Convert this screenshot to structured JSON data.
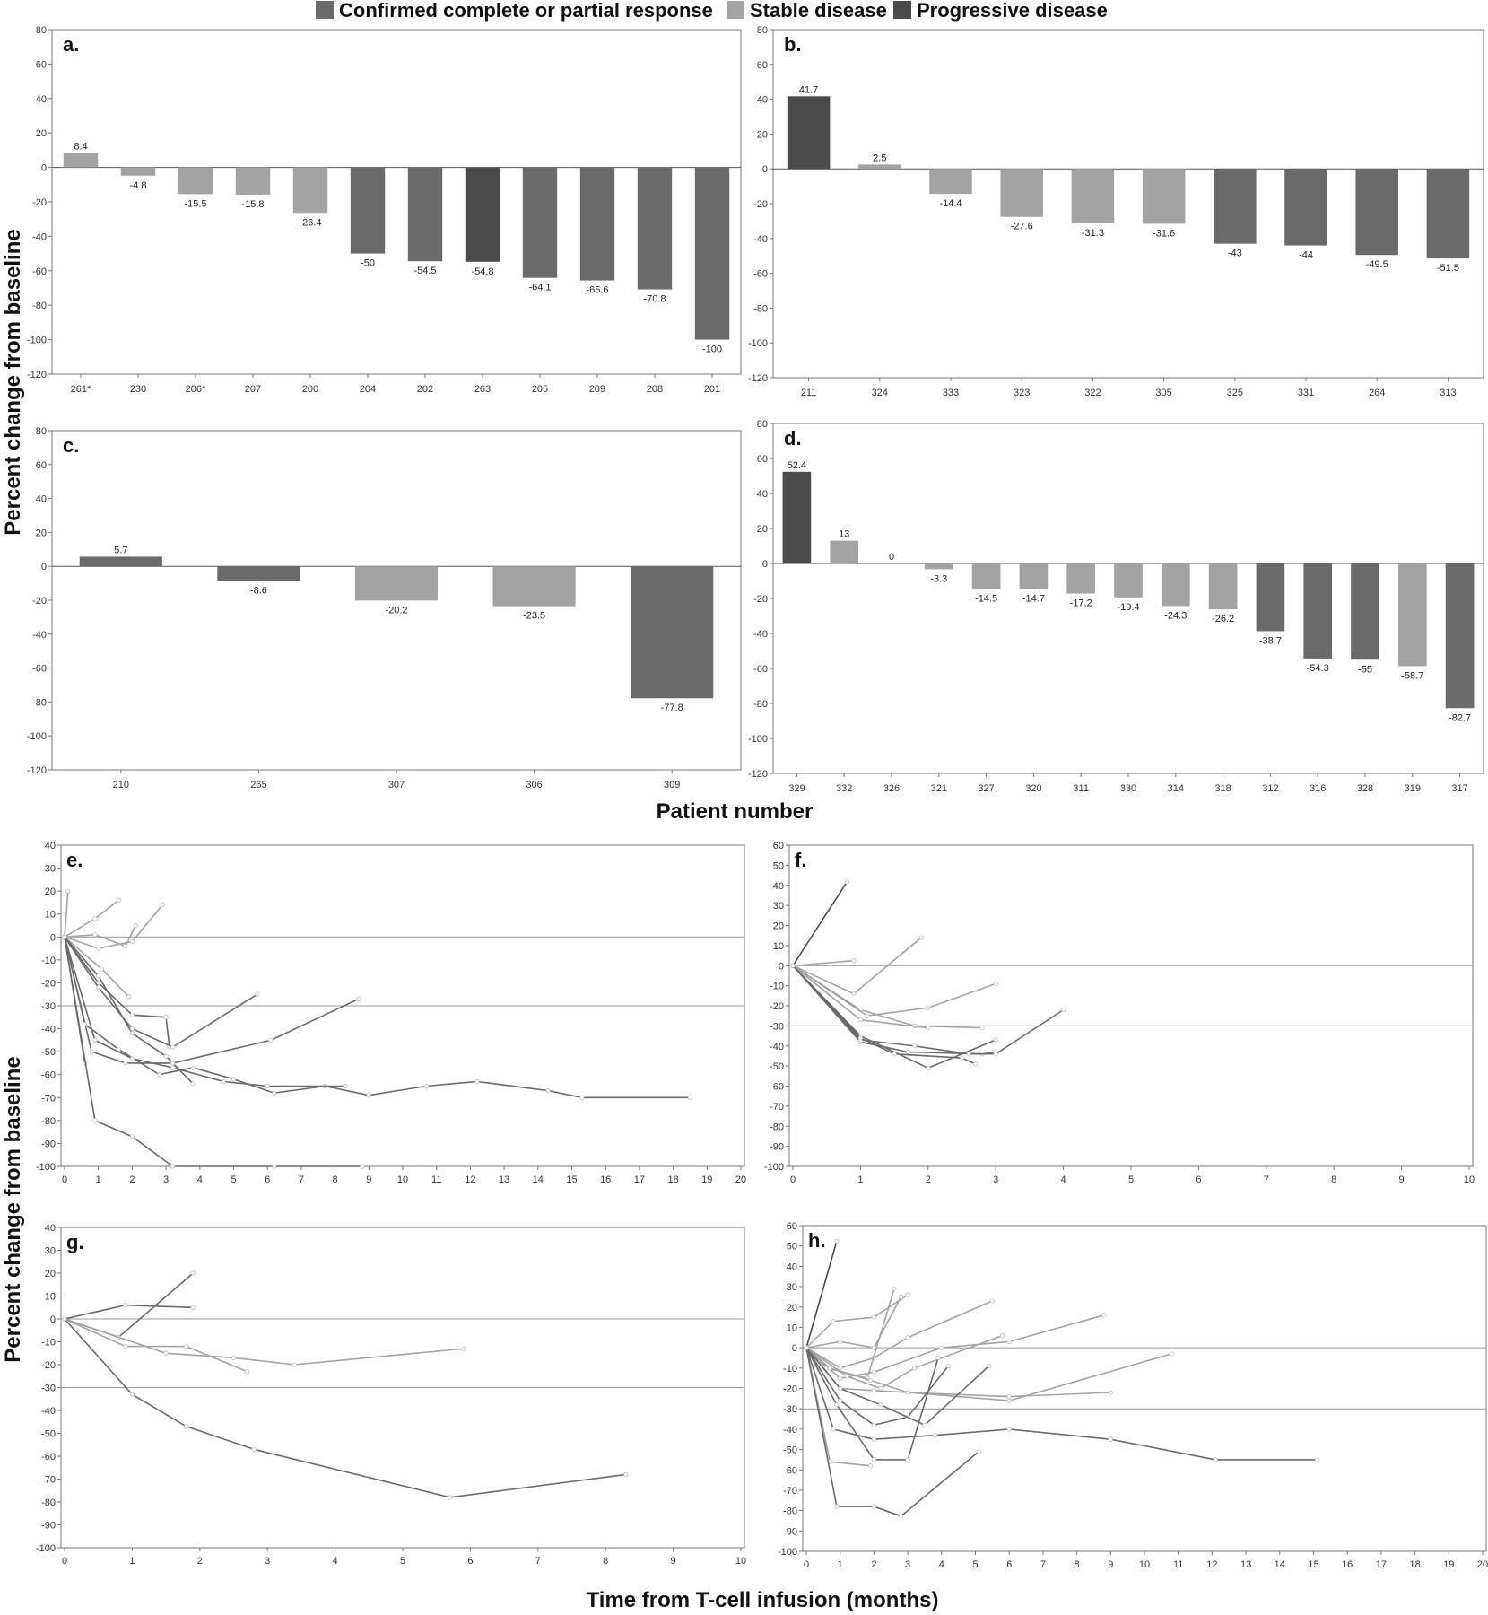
{
  "legend": [
    {
      "label": "Confirmed complete or partial response",
      "color": "#6a6a6a"
    },
    {
      "label": "Stable disease",
      "color": "#a3a3a3"
    },
    {
      "label": "Progressive disease",
      "color": "#4b4b4b"
    }
  ],
  "labels": {
    "ylabel_top": "Percent change from baseline",
    "xlabel_top": "Patient number",
    "ylabel_bottom": "Percent change from baseline",
    "xlabel_bottom": "Time from T-cell infusion (months)"
  },
  "colors": {
    "response": "#6a6a6a",
    "stable": "#a3a3a3",
    "progressive": "#4b4b4b"
  },
  "chart_data": [
    {
      "panel": "a.",
      "type": "bar",
      "ylim": [
        -120,
        80
      ],
      "ytick_step": 20,
      "categories": [
        "261*",
        "230",
        "206*",
        "207",
        "200",
        "204",
        "202",
        "263",
        "205",
        "209",
        "208",
        "201"
      ],
      "values": [
        8.4,
        -4.8,
        -15.5,
        -15.8,
        -26.4,
        -50,
        -54.5,
        -54.8,
        -64.1,
        -65.6,
        -70.8,
        -100
      ],
      "labels": [
        "8.4",
        "-4.8",
        "-15.5",
        "-15.8",
        "-26.4",
        "-50",
        "-54.5",
        "-54.8",
        "-64.1",
        "-65.6",
        "-70.8",
        "-100"
      ],
      "response": [
        "stable",
        "stable",
        "stable",
        "stable",
        "stable",
        "response",
        "response",
        "progressive",
        "response",
        "response",
        "response",
        "response"
      ]
    },
    {
      "panel": "b.",
      "type": "bar",
      "ylim": [
        -120,
        80
      ],
      "ytick_step": 20,
      "categories": [
        "211",
        "324",
        "333",
        "323",
        "322",
        "305",
        "325",
        "331",
        "264",
        "313"
      ],
      "values": [
        41.7,
        2.5,
        -14.4,
        -27.6,
        -31.3,
        -31.6,
        -43,
        -44,
        -49.5,
        -51.5
      ],
      "labels": [
        "41.7",
        "2.5",
        "-14.4",
        "-27.6",
        "-31.3",
        "-31.6",
        "-43",
        "-44",
        "-49.5",
        "-51.5"
      ],
      "response": [
        "progressive",
        "stable",
        "stable",
        "stable",
        "stable",
        "stable",
        "response",
        "response",
        "response",
        "response"
      ]
    },
    {
      "panel": "c.",
      "type": "bar",
      "ylim": [
        -120,
        80
      ],
      "ytick_step": 20,
      "categories": [
        "210",
        "265",
        "307",
        "306",
        "309"
      ],
      "values": [
        5.7,
        -8.6,
        -20.2,
        -23.5,
        -77.8
      ],
      "labels": [
        "5.7",
        "-8.6",
        "-20.2",
        "-23.5",
        "-77.8"
      ],
      "response": [
        "response",
        "response",
        "stable",
        "stable",
        "response"
      ]
    },
    {
      "panel": "d.",
      "type": "bar",
      "ylim": [
        -120,
        80
      ],
      "ytick_step": 20,
      "categories": [
        "329",
        "332",
        "326",
        "321",
        "327",
        "320",
        "311",
        "330",
        "314",
        "318",
        "312",
        "316",
        "328",
        "319",
        "317"
      ],
      "values": [
        52.4,
        13,
        0,
        -3.3,
        -14.5,
        -14.7,
        -17.2,
        -19.4,
        -24.3,
        -26.2,
        -38.7,
        -54.3,
        -55,
        -58.7,
        -82.7
      ],
      "labels": [
        "52.4",
        "13",
        "0",
        "-3.3",
        "-14.5",
        "-14.7",
        "-17.2",
        "-19.4",
        "-24.3",
        "-26.2",
        "-38.7",
        "-54.3",
        "-55",
        "-58.7",
        "-82.7"
      ],
      "response": [
        "progressive",
        "stable",
        "stable",
        "stable",
        "stable",
        "stable",
        "stable",
        "stable",
        "stable",
        "stable",
        "response",
        "response",
        "response",
        "stable",
        "response"
      ]
    },
    {
      "panel": "e.",
      "type": "line",
      "xlim": [
        0,
        20
      ],
      "ylim": [
        -100,
        40
      ],
      "ytick_step": 10,
      "ref_lines": [
        0,
        -30
      ],
      "series": [
        {
          "response": "stable",
          "x": [
            0,
            0.1
          ],
          "y": [
            0,
            20
          ]
        },
        {
          "response": "stable",
          "x": [
            0,
            0.9,
            1.6
          ],
          "y": [
            0,
            8,
            16
          ]
        },
        {
          "response": "stable",
          "x": [
            0,
            0.9,
            1.8,
            2.1
          ],
          "y": [
            0,
            1,
            -4,
            5
          ]
        },
        {
          "response": "stable",
          "x": [
            0,
            1.0,
            2.0,
            2.9
          ],
          "y": [
            0,
            -5,
            -2,
            14
          ]
        },
        {
          "response": "stable",
          "x": [
            0,
            1.1,
            1.9
          ],
          "y": [
            0,
            -14,
            -26
          ]
        },
        {
          "response": "response",
          "x": [
            0,
            1.0,
            2.0,
            3.0,
            3.8
          ],
          "y": [
            0,
            -17,
            -42,
            -52,
            -64
          ]
        },
        {
          "response": "response",
          "x": [
            0,
            1.0,
            2.0,
            3.0,
            3.1
          ],
          "y": [
            0,
            -20,
            -34,
            -35,
            -48
          ]
        },
        {
          "response": "response",
          "x": [
            0,
            1.0,
            2.0,
            3.2,
            5.7
          ],
          "y": [
            0,
            -22,
            -40,
            -48,
            -25
          ]
        },
        {
          "response": "response",
          "x": [
            0,
            0.8,
            1.8,
            3.2,
            6.1,
            8.7
          ],
          "y": [
            0,
            -50,
            -55,
            -55,
            -45,
            -27
          ]
        },
        {
          "response": "response",
          "x": [
            0,
            0.6,
            1.6,
            2.8,
            3.8,
            5.0,
            6.2,
            7.7,
            9.0,
            10.7,
            12.2,
            14.3,
            15.3,
            18.5
          ],
          "y": [
            0,
            -38,
            -49,
            -60,
            -57,
            -62,
            -68,
            -65,
            -69,
            -65,
            -63,
            -67,
            -70,
            -70
          ]
        },
        {
          "response": "response",
          "x": [
            0,
            0.9,
            2.0,
            3.2,
            4.7,
            6.0,
            8.3
          ],
          "y": [
            0,
            -45,
            -53,
            -57,
            -63,
            -65,
            -65
          ]
        },
        {
          "response": "response",
          "x": [
            0,
            0.6
          ],
          "y": [
            0,
            -55
          ]
        },
        {
          "response": "response",
          "x": [
            0,
            0.9,
            2.0,
            3.2,
            6.2,
            8.8
          ],
          "y": [
            0,
            -80,
            -87,
            -100,
            -100,
            -100
          ]
        }
      ]
    },
    {
      "panel": "f.",
      "type": "line",
      "xlim": [
        0,
        10
      ],
      "ylim": [
        -100,
        60
      ],
      "ytick_step": 10,
      "ref_lines": [
        0,
        -30
      ],
      "series": [
        {
          "response": "progressive",
          "x": [
            0,
            0.8
          ],
          "y": [
            0,
            41.7
          ]
        },
        {
          "response": "stable",
          "x": [
            0,
            0.9
          ],
          "y": [
            0,
            2.5
          ]
        },
        {
          "response": "stable",
          "x": [
            0,
            0.9,
            1.9
          ],
          "y": [
            0,
            -14,
            14
          ]
        },
        {
          "response": "stable",
          "x": [
            0,
            1.0,
            1.8,
            2.8
          ],
          "y": [
            0,
            -22,
            -30,
            -31
          ]
        },
        {
          "response": "stable",
          "x": [
            0,
            1.0,
            2.0
          ],
          "y": [
            0,
            -27,
            -31
          ]
        },
        {
          "response": "stable",
          "x": [
            0,
            1.1,
            2.0,
            3.0
          ],
          "y": [
            0,
            -25,
            -21,
            -9
          ]
        },
        {
          "response": "response",
          "x": [
            0,
            1.0,
            1.7,
            2.8,
            3.0
          ],
          "y": [
            0,
            -38,
            -43,
            -44,
            -43
          ]
        },
        {
          "response": "response",
          "x": [
            0,
            1.0,
            1.8,
            2.6,
            3.0,
            4.0
          ],
          "y": [
            0,
            -37,
            -40,
            -44,
            -44,
            -22
          ]
        },
        {
          "response": "response",
          "x": [
            0,
            1.0,
            2.0,
            3.0
          ],
          "y": [
            0,
            -35,
            -51,
            -37
          ]
        },
        {
          "response": "response",
          "x": [
            0,
            1.0,
            1.5,
            2.5,
            2.7
          ],
          "y": [
            0,
            -36,
            -44,
            -46,
            -49
          ]
        }
      ]
    },
    {
      "panel": "g.",
      "type": "line",
      "xlim": [
        0,
        10
      ],
      "ylim": [
        -100,
        40
      ],
      "ytick_step": 10,
      "ref_lines": [
        0,
        -30
      ],
      "series": [
        {
          "response": "response",
          "x": [
            0,
            0.9,
            1.9
          ],
          "y": [
            0,
            6,
            5
          ]
        },
        {
          "response": "response",
          "x": [
            0,
            0.8,
            1.9
          ],
          "y": [
            0,
            -8,
            20
          ]
        },
        {
          "response": "stable",
          "x": [
            0,
            0.9,
            1.8,
            2.7
          ],
          "y": [
            0,
            -12,
            -12,
            -23
          ]
        },
        {
          "response": "stable",
          "x": [
            0,
            1.5,
            2.5,
            3.4,
            5.9
          ],
          "y": [
            0,
            -15,
            -17,
            -20,
            -13
          ]
        },
        {
          "response": "response",
          "x": [
            0,
            1.0,
            1.8,
            2.8,
            5.7,
            8.3
          ],
          "y": [
            0,
            -33,
            -47,
            -57,
            -78,
            -68
          ]
        }
      ]
    },
    {
      "panel": "h.",
      "type": "line",
      "xlim": [
        0,
        20
      ],
      "ylim": [
        -100,
        60
      ],
      "ytick_step": 10,
      "ref_lines": [
        0,
        -30
      ],
      "series": [
        {
          "response": "progressive",
          "x": [
            0,
            0.9
          ],
          "y": [
            0,
            52.4
          ]
        },
        {
          "response": "stable",
          "x": [
            0,
            0.8,
            2.0,
            3.0
          ],
          "y": [
            0,
            13,
            15,
            26
          ]
        },
        {
          "response": "stable",
          "x": [
            0,
            1.0,
            2.0,
            2.8
          ],
          "y": [
            0,
            3,
            0,
            25
          ]
        },
        {
          "response": "stable",
          "x": [
            0,
            1.0,
            2.0,
            3.0,
            5.5
          ],
          "y": [
            0,
            -10,
            -5,
            5,
            23
          ]
        },
        {
          "response": "stable",
          "x": [
            0,
            0.6,
            1.8,
            2.6
          ],
          "y": [
            0,
            -10,
            -15,
            29
          ]
        },
        {
          "response": "stable",
          "x": [
            0,
            1.0,
            2.0,
            4.0,
            6.0,
            8.8
          ],
          "y": [
            0,
            -15,
            -12,
            0,
            3,
            16
          ]
        },
        {
          "response": "stable",
          "x": [
            0,
            1.2,
            2.2,
            3.2,
            5.8
          ],
          "y": [
            0,
            -14,
            -20,
            -10,
            6
          ]
        },
        {
          "response": "stable",
          "x": [
            0,
            1.0,
            2.0,
            3.0,
            6.0,
            9.0
          ],
          "y": [
            0,
            -20,
            -21,
            -22,
            -24,
            -22
          ]
        },
        {
          "response": "stable",
          "x": [
            0,
            0.7,
            1.9,
            3.0,
            6.0,
            10.8
          ],
          "y": [
            0,
            -10,
            -16,
            -22,
            -26,
            -3
          ]
        },
        {
          "response": "stable",
          "x": [
            0,
            0.7,
            1.9
          ],
          "y": [
            0,
            -56,
            -58
          ]
        },
        {
          "response": "response",
          "x": [
            0,
            0.9,
            2.0,
            3.0,
            3.9
          ],
          "y": [
            0,
            -28,
            -55,
            -55,
            -5
          ]
        },
        {
          "response": "response",
          "x": [
            0,
            1.0,
            2.0,
            3.0,
            4.2
          ],
          "y": [
            0,
            -26,
            -38,
            -34,
            -9
          ]
        },
        {
          "response": "response",
          "x": [
            0,
            1.0,
            2.2,
            3.5,
            5.4
          ],
          "y": [
            0,
            -20,
            -28,
            -38,
            -9
          ]
        },
        {
          "response": "response",
          "x": [
            0,
            0.8,
            2.0,
            3.8,
            6.0,
            9.0,
            12.1,
            15.1
          ],
          "y": [
            0,
            -40,
            -45,
            -43,
            -40,
            -45,
            -55,
            -55
          ]
        },
        {
          "response": "response",
          "x": [
            0,
            0.9,
            2.0,
            2.8,
            5.1
          ],
          "y": [
            0,
            -78,
            -78,
            -82.7,
            -51
          ]
        }
      ]
    }
  ]
}
